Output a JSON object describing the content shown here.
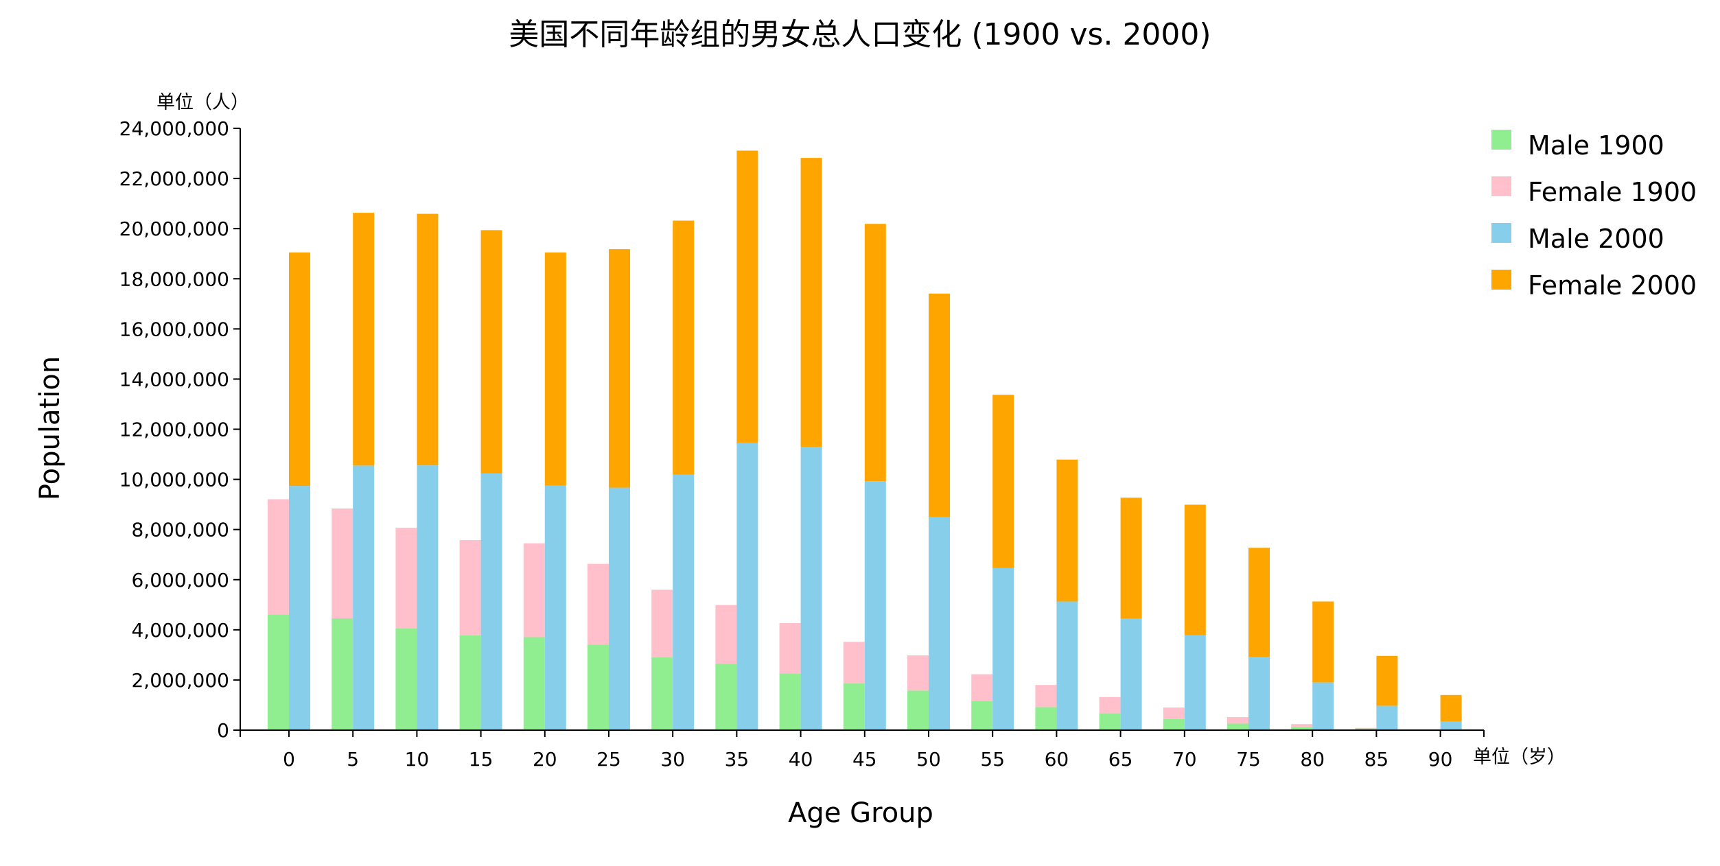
{
  "chart_data": {
    "type": "bar",
    "stacked": true,
    "title": "美国不同年龄组的男女总人口变化 (1900 vs. 2000)",
    "xlabel": "Age Group",
    "ylabel": "Population",
    "y_unit": "单位（人）",
    "x_unit": "单位（岁）",
    "ylim": [
      0,
      24000000
    ],
    "yticks": [
      0,
      2000000,
      4000000,
      6000000,
      8000000,
      10000000,
      12000000,
      14000000,
      16000000,
      18000000,
      20000000,
      22000000,
      24000000
    ],
    "ytick_labels": [
      "0",
      "2,000,000",
      "4,000,000",
      "6,000,000",
      "8,000,000",
      "10,000,000",
      "12,000,000",
      "14,000,000",
      "16,000,000",
      "18,000,000",
      "20,000,000",
      "22,000,000",
      "24,000,000"
    ],
    "categories": [
      "0",
      "5",
      "10",
      "15",
      "20",
      "25",
      "30",
      "35",
      "40",
      "45",
      "50",
      "55",
      "60",
      "65",
      "70",
      "75",
      "80",
      "85",
      "90"
    ],
    "groups": [
      {
        "year": "1900",
        "series": [
          {
            "name": "Male 1900",
            "color": "#90EE90",
            "values": [
              4620000,
              4460000,
              4060000,
              3780000,
              3710000,
              3410000,
              2900000,
              2640000,
              2260000,
              1860000,
              1580000,
              1150000,
              920000,
              680000,
              440000,
              260000,
              110000,
              40000,
              10000
            ]
          },
          {
            "name": "Female 1900",
            "color": "#FFC0CB",
            "values": [
              4590000,
              4380000,
              4010000,
              3800000,
              3740000,
              3220000,
              2700000,
              2350000,
              2010000,
              1660000,
              1400000,
              1080000,
              880000,
              640000,
              460000,
              260000,
              130000,
              50000,
              10000
            ]
          }
        ]
      },
      {
        "year": "2000",
        "series": [
          {
            "name": "Male 2000",
            "color": "#87CEEB",
            "values": [
              9740000,
              10550000,
              10560000,
              10240000,
              9750000,
              9670000,
              10190000,
              11460000,
              11300000,
              9930000,
              8500000,
              6460000,
              5130000,
              4460000,
              3790000,
              2920000,
              1900000,
              970000,
              340000
            ]
          },
          {
            "name": "Female 2000",
            "color": "#FFA500",
            "values": [
              9310000,
              10080000,
              10030000,
              9700000,
              9300000,
              9510000,
              10130000,
              11650000,
              11520000,
              10260000,
              8910000,
              6910000,
              5660000,
              4810000,
              5200000,
              4350000,
              3230000,
              1990000,
              1060000
            ]
          }
        ]
      }
    ],
    "legend_position": "top-right"
  }
}
